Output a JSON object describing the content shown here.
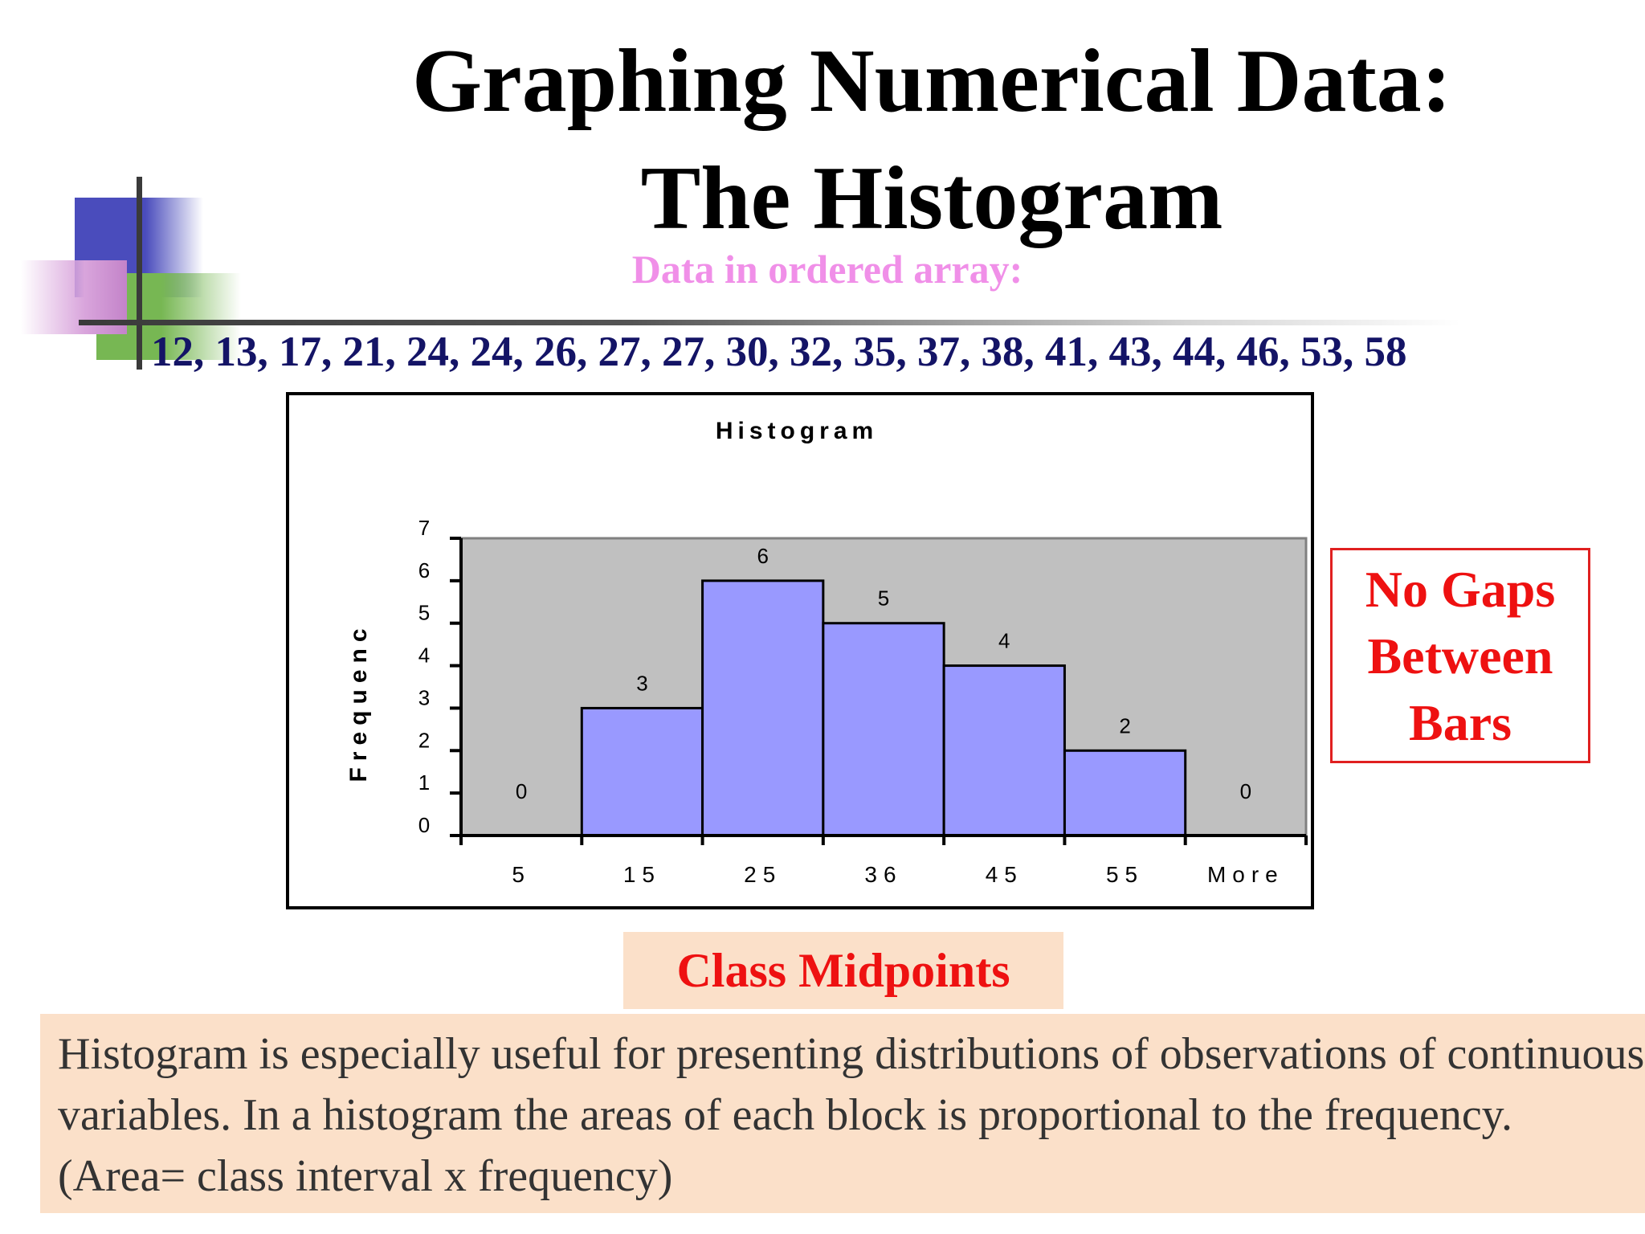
{
  "slide": {
    "title_line1": "Graphing Numerical Data:",
    "title_line2": "The Histogram",
    "subtitle": "Data in ordered array:",
    "data_list": "12, 13, 17, 21, 24, 24, 26, 27, 27, 30, 32, 35, 37, 38, 41, 43, 44, 46, 53, 58",
    "callout": "No Gaps Between Bars",
    "midpoints_label": "Class Midpoints",
    "note": "Histogram is especially useful for presenting distributions of observations of continuous variables. In a histogram the areas of each block is proportional to the frequency. (Area= class interval x frequency)"
  },
  "colors": {
    "title": "#000000",
    "subtitle": "#f08fe8",
    "data_list": "#141466",
    "callout": "#ee1111",
    "box_fill": "#fbe0c9",
    "plot_area": "#c0c0c0",
    "bar_fill": "#9999ff",
    "deco_blue": "#4a4cbc",
    "deco_green": "#77b753",
    "deco_pink": "#c383c9"
  },
  "chart_data": {
    "type": "bar",
    "title": "Histogram",
    "ylabel": "Frequenc",
    "xlabel": "",
    "categories": [
      "5",
      "15",
      "25",
      "36",
      "45",
      "55",
      "More"
    ],
    "series": [
      {
        "values": [
          0,
          3,
          6,
          5,
          4,
          2,
          0
        ]
      }
    ],
    "data_labels": [
      "0",
      "3",
      "6",
      "5",
      "4",
      "2",
      "0"
    ],
    "ylim": [
      0,
      7
    ],
    "yticks": [
      "0",
      "1",
      "2",
      "3",
      "4",
      "5",
      "6",
      "7"
    ],
    "bar_gap": 0,
    "grid": false,
    "legend": "none"
  }
}
